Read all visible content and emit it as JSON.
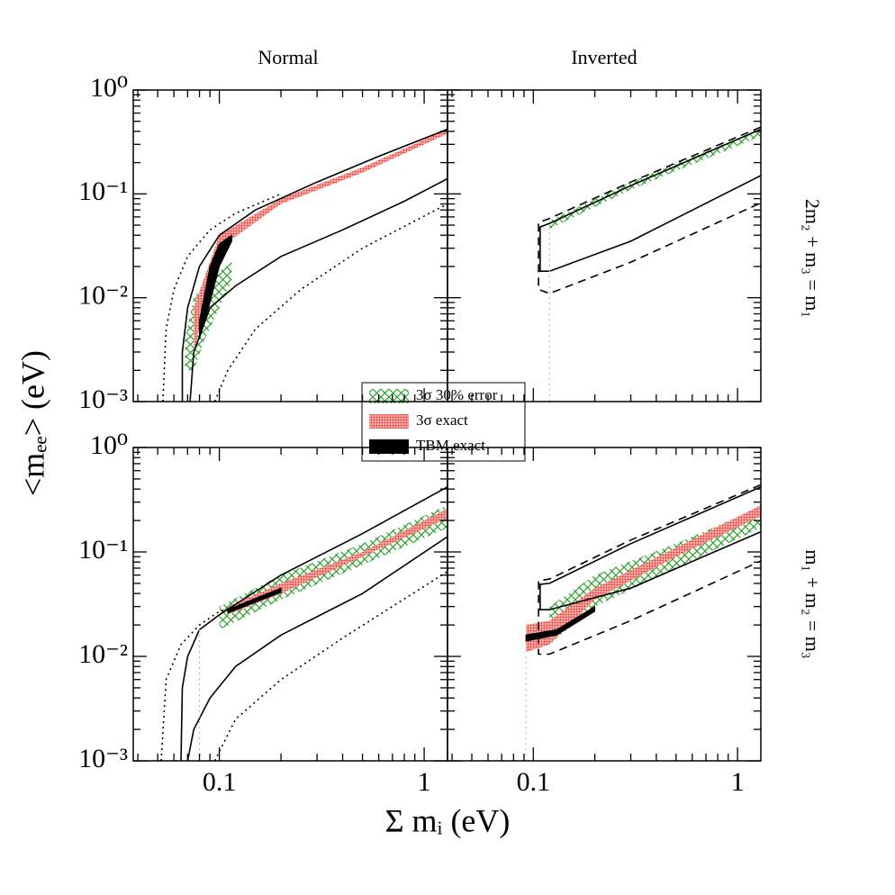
{
  "figure": {
    "x_label": "Σ mᵢ (eV)",
    "y_label": "<mₑₑ> (eV)",
    "column_titles": [
      "Normal",
      "Inverted"
    ],
    "row_labels": [
      "2m₂ + m₃ = m₁",
      "m₁ + m₂ = m₃"
    ]
  },
  "chart_data": [
    {
      "type": "line",
      "xlog": true,
      "ylog": true,
      "xlim": [
        0.038,
        1.3
      ],
      "ylim": [
        0.001,
        1
      ],
      "xticks": [
        0.1,
        1
      ],
      "yticks": [
        {
          "value": 0.001,
          "label": "10⁻³"
        },
        {
          "value": 0.01,
          "label": "10⁻²"
        },
        {
          "value": 0.1,
          "label": "10⁻¹"
        },
        {
          "value": 1,
          "label": "10⁰"
        }
      ],
      "xminor": [
        0.04,
        0.05,
        0.06,
        0.07,
        0.08,
        0.09,
        0.2,
        0.3,
        0.4,
        0.5,
        0.6,
        0.7,
        0.8,
        0.9
      ],
      "yminor": [
        0.002,
        0.003,
        0.004,
        0.005,
        0.006,
        0.007,
        0.008,
        0.009,
        0.02,
        0.03,
        0.04,
        0.05,
        0.06,
        0.07,
        0.08,
        0.09,
        0.2,
        0.3,
        0.4,
        0.5,
        0.6,
        0.7,
        0.8,
        0.9
      ],
      "show_xtick_labels": false,
      "show_ytick_labels": true,
      "series": [
        {
          "kind": "band",
          "name": "3σ 30% error",
          "color": "#2ca02c",
          "pattern": "hatch",
          "x": [
            0.068,
            0.075,
            0.085,
            0.1,
            0.115
          ],
          "low": [
            0.002,
            0.002,
            0.004,
            0.008,
            0.015
          ],
          "high": [
            0.004,
            0.01,
            0.014,
            0.018,
            0.022
          ]
        },
        {
          "kind": "band",
          "name": "3σ exact",
          "color": "#e8302a",
          "pattern": "dots",
          "x": [
            0.075,
            0.1,
            0.2,
            0.5,
            1.3
          ],
          "low": [
            0.003,
            0.03,
            0.08,
            0.16,
            0.38
          ],
          "high": [
            0.008,
            0.04,
            0.09,
            0.18,
            0.42
          ]
        },
        {
          "kind": "band",
          "name": "TBM exact",
          "color": "#000000",
          "pattern": "solid",
          "x": [
            0.08,
            0.09,
            0.1,
            0.115
          ],
          "low": [
            0.004,
            0.009,
            0.02,
            0.035
          ],
          "high": [
            0.006,
            0.02,
            0.033,
            0.04
          ]
        },
        {
          "kind": "line",
          "style": "solid",
          "color": "#000000",
          "x": [
            0.066,
            0.066,
            0.07,
            0.08,
            0.1,
            0.15,
            0.3,
            0.6,
            1.3
          ],
          "values": [
            0.001,
            0.003,
            0.008,
            0.02,
            0.04,
            0.07,
            0.13,
            0.23,
            0.42
          ]
        },
        {
          "kind": "line",
          "style": "solid",
          "color": "#000000",
          "x": [
            0.072,
            0.075,
            0.09,
            0.12,
            0.2,
            0.4,
            0.8,
            1.3
          ],
          "values": [
            0.001,
            0.003,
            0.008,
            0.013,
            0.025,
            0.045,
            0.085,
            0.14
          ]
        },
        {
          "kind": "line",
          "style": "dotted",
          "color": "#000000",
          "x": [
            0.053,
            0.055,
            0.06,
            0.07,
            0.09,
            0.12,
            0.2
          ],
          "values": [
            0.001,
            0.005,
            0.012,
            0.025,
            0.045,
            0.065,
            0.1
          ]
        },
        {
          "kind": "line",
          "style": "dotted",
          "color": "#000000",
          "x": [
            0.095,
            0.11,
            0.15,
            0.25,
            0.5,
            1.3
          ],
          "values": [
            0.001,
            0.002,
            0.005,
            0.012,
            0.03,
            0.08
          ]
        }
      ]
    },
    {
      "type": "line",
      "xlog": true,
      "ylog": true,
      "xlim": [
        0.038,
        1.3
      ],
      "ylim": [
        0.001,
        1
      ],
      "xticks": [
        0.1,
        1
      ],
      "yticks": [
        0.001,
        0.01,
        0.1,
        1
      ],
      "xminor": [
        0.04,
        0.05,
        0.06,
        0.07,
        0.08,
        0.09,
        0.2,
        0.3,
        0.4,
        0.5,
        0.6,
        0.7,
        0.8,
        0.9
      ],
      "yminor": [
        0.002,
        0.003,
        0.004,
        0.005,
        0.006,
        0.007,
        0.008,
        0.009,
        0.02,
        0.03,
        0.04,
        0.05,
        0.06,
        0.07,
        0.08,
        0.09,
        0.2,
        0.3,
        0.4,
        0.5,
        0.6,
        0.7,
        0.8,
        0.9
      ],
      "show_xtick_labels": false,
      "show_ytick_labels": false,
      "series": [
        {
          "kind": "band",
          "color": "#2ca02c",
          "pattern": "hatch",
          "x": [
            0.12,
            0.3,
            1.3
          ],
          "low": [
            0.046,
            0.11,
            0.36
          ],
          "high": [
            0.055,
            0.13,
            0.42
          ]
        },
        {
          "kind": "line",
          "style": "dashed",
          "color": "#000000",
          "x": [
            1.3,
            0.3,
            0.12,
            0.106,
            0.106,
            0.12,
            0.3,
            1.3
          ],
          "values": [
            0.44,
            0.13,
            0.058,
            0.053,
            0.012,
            0.011,
            0.022,
            0.082
          ]
        },
        {
          "kind": "line",
          "style": "solid",
          "color": "#000000",
          "x": [
            1.3,
            0.3,
            0.12,
            0.108,
            0.108,
            0.12,
            0.3,
            1.3
          ],
          "values": [
            0.42,
            0.12,
            0.052,
            0.048,
            0.018,
            0.018,
            0.035,
            0.15
          ]
        },
        {
          "kind": "line",
          "style": "dotted",
          "color": "#bbbbbb",
          "x": [
            0.12,
            0.12
          ],
          "values": [
            0.001,
            0.048
          ]
        }
      ]
    },
    {
      "type": "line",
      "xlog": true,
      "ylog": true,
      "xlim": [
        0.038,
        1.3
      ],
      "ylim": [
        0.001,
        1
      ],
      "xticks": [
        0.1,
        1
      ],
      "yticks": [
        {
          "value": 0.001,
          "label": "10⁻³"
        },
        {
          "value": 0.01,
          "label": "10⁻²"
        },
        {
          "value": 0.1,
          "label": "10⁻¹"
        },
        {
          "value": 1,
          "label": "10⁰"
        }
      ],
      "xminor": [
        0.04,
        0.05,
        0.06,
        0.07,
        0.08,
        0.09,
        0.2,
        0.3,
        0.4,
        0.5,
        0.6,
        0.7,
        0.8,
        0.9
      ],
      "yminor": [
        0.002,
        0.003,
        0.004,
        0.005,
        0.006,
        0.007,
        0.008,
        0.009,
        0.02,
        0.03,
        0.04,
        0.05,
        0.06,
        0.07,
        0.08,
        0.09,
        0.2,
        0.3,
        0.4,
        0.5,
        0.6,
        0.7,
        0.8,
        0.9
      ],
      "show_xtick_labels": true,
      "show_ytick_labels": true,
      "series": [
        {
          "kind": "band",
          "color": "#2ca02c",
          "pattern": "hatch",
          "x": [
            0.1,
            0.2,
            0.5,
            1.3
          ],
          "low": [
            0.018,
            0.035,
            0.075,
            0.17
          ],
          "high": [
            0.03,
            0.06,
            0.12,
            0.28
          ]
        },
        {
          "kind": "band",
          "color": "#e8302a",
          "pattern": "dots",
          "x": [
            0.11,
            0.2,
            0.5,
            1.3
          ],
          "low": [
            0.025,
            0.04,
            0.09,
            0.21
          ],
          "high": [
            0.03,
            0.05,
            0.1,
            0.26
          ]
        },
        {
          "kind": "band",
          "color": "#000000",
          "pattern": "solid",
          "x": [
            0.11,
            0.15,
            0.2
          ],
          "low": [
            0.026,
            0.033,
            0.041
          ],
          "high": [
            0.028,
            0.036,
            0.045
          ]
        },
        {
          "kind": "line",
          "style": "solid",
          "color": "#000000",
          "x": [
            0.065,
            0.066,
            0.07,
            0.08,
            0.1,
            0.2,
            0.5,
            1.3
          ],
          "values": [
            0.001,
            0.005,
            0.01,
            0.018,
            0.025,
            0.06,
            0.15,
            0.42
          ]
        },
        {
          "kind": "line",
          "style": "solid",
          "color": "#000000",
          "x": [
            0.07,
            0.075,
            0.09,
            0.12,
            0.2,
            0.5,
            1.3
          ],
          "values": [
            0.001,
            0.002,
            0.004,
            0.008,
            0.016,
            0.04,
            0.14
          ]
        },
        {
          "kind": "line",
          "style": "dotted",
          "color": "#000000",
          "x": [
            0.052,
            0.055,
            0.065,
            0.08,
            0.1,
            0.12
          ],
          "values": [
            0.001,
            0.006,
            0.013,
            0.02,
            0.027,
            0.03
          ]
        },
        {
          "kind": "line",
          "style": "dotted",
          "color": "#000000",
          "x": [
            0.095,
            0.12,
            0.2,
            0.4,
            1.3
          ],
          "values": [
            0.001,
            0.0025,
            0.006,
            0.015,
            0.065
          ]
        },
        {
          "kind": "line",
          "style": "dotted",
          "color": "#bbbbbb",
          "x": [
            0.08,
            0.08
          ],
          "values": [
            0.001,
            0.018
          ]
        }
      ]
    },
    {
      "type": "line",
      "xlog": true,
      "ylog": true,
      "xlim": [
        0.038,
        1.3
      ],
      "ylim": [
        0.001,
        1
      ],
      "xticks": [
        0.1,
        1
      ],
      "yticks": [
        0.001,
        0.01,
        0.1,
        1
      ],
      "xminor": [
        0.04,
        0.05,
        0.06,
        0.07,
        0.08,
        0.09,
        0.2,
        0.3,
        0.4,
        0.5,
        0.6,
        0.7,
        0.8,
        0.9
      ],
      "yminor": [
        0.002,
        0.003,
        0.004,
        0.005,
        0.006,
        0.007,
        0.008,
        0.009,
        0.02,
        0.03,
        0.04,
        0.05,
        0.06,
        0.07,
        0.08,
        0.09,
        0.2,
        0.3,
        0.4,
        0.5,
        0.6,
        0.7,
        0.8,
        0.9
      ],
      "show_xtick_labels": true,
      "show_ytick_labels": false,
      "series": [
        {
          "kind": "band",
          "color": "#2ca02c",
          "pattern": "hatch",
          "x": [
            0.12,
            0.2,
            0.5,
            1.3
          ],
          "low": [
            0.013,
            0.03,
            0.07,
            0.17
          ],
          "high": [
            0.03,
            0.06,
            0.12,
            0.27
          ]
        },
        {
          "kind": "band",
          "color": "#e8302a",
          "pattern": "dots",
          "x": [
            0.092,
            0.12,
            0.2,
            0.5,
            1.3
          ],
          "low": [
            0.011,
            0.013,
            0.035,
            0.09,
            0.22
          ],
          "high": [
            0.02,
            0.022,
            0.045,
            0.11,
            0.28
          ]
        },
        {
          "kind": "band",
          "color": "#000000",
          "pattern": "solid",
          "x": [
            0.092,
            0.13,
            0.2
          ],
          "low": [
            0.014,
            0.016,
            0.027
          ],
          "high": [
            0.016,
            0.018,
            0.03
          ]
        },
        {
          "kind": "line",
          "style": "dashed",
          "color": "#000000",
          "x": [
            1.3,
            0.3,
            0.12,
            0.106,
            0.106,
            0.12,
            0.3,
            1.3
          ],
          "values": [
            0.44,
            0.13,
            0.055,
            0.053,
            0.0105,
            0.0105,
            0.022,
            0.082
          ]
        },
        {
          "kind": "line",
          "style": "solid",
          "color": "#000000",
          "x": [
            1.3,
            0.3,
            0.12,
            0.108,
            0.108,
            0.12,
            0.3,
            1.3
          ],
          "values": [
            0.42,
            0.12,
            0.05,
            0.049,
            0.028,
            0.028,
            0.045,
            0.156
          ]
        },
        {
          "kind": "line",
          "style": "dotted",
          "color": "#bbbbbb",
          "x": [
            0.092,
            0.092
          ],
          "values": [
            0.001,
            0.011
          ]
        }
      ]
    }
  ]
}
